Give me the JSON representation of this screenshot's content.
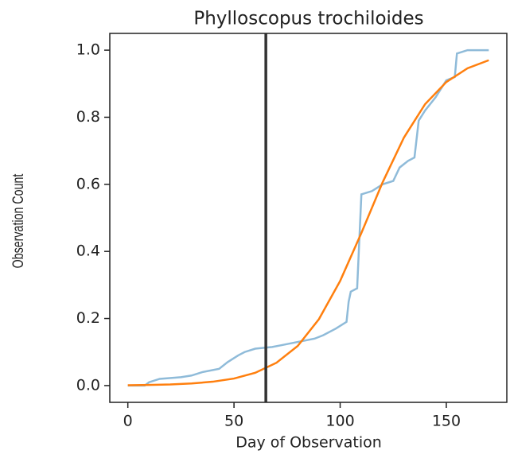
{
  "chart_data": {
    "type": "line",
    "title": "Phylloscopus trochiloides",
    "x_label": "Day of Observation",
    "y_label": "Observation Count",
    "xlim": [
      -8.5,
      178.5
    ],
    "ylim": [
      -0.05,
      1.05
    ],
    "xticks": [
      0,
      50,
      100,
      150
    ],
    "yticks": [
      {
        "value": 0,
        "label": "0.0"
      },
      0.2,
      0.4,
      0.6,
      0.8,
      {
        "value": 1,
        "label": "1.0"
      }
    ],
    "vline": 65,
    "vline_color": "#333333",
    "series": [
      {
        "color": "#8fbbd9",
        "x": [
          0,
          8,
          10,
          15,
          25,
          30,
          35,
          43,
          47,
          52,
          55,
          60,
          68,
          72,
          80,
          88,
          92,
          98,
          103,
          104,
          105,
          108,
          110,
          115,
          120,
          125,
          128,
          132,
          135,
          137,
          140,
          145,
          150,
          154,
          155,
          160,
          165,
          170
        ],
        "values": [
          0,
          0,
          0.01,
          0.02,
          0.025,
          0.03,
          0.04,
          0.05,
          0.07,
          0.09,
          0.1,
          0.11,
          0.115,
          0.12,
          0.13,
          0.14,
          0.15,
          0.17,
          0.19,
          0.25,
          0.28,
          0.29,
          0.57,
          0.58,
          0.6,
          0.61,
          0.65,
          0.67,
          0.68,
          0.79,
          0.82,
          0.86,
          0.91,
          0.92,
          0.99,
          1.0,
          1.0,
          1.0
        ]
      },
      {
        "color": "#ff7f0e",
        "x": [
          0,
          10,
          20,
          30,
          40,
          50,
          60,
          70,
          80,
          90,
          100,
          110,
          120,
          130,
          140,
          150,
          160,
          170
        ],
        "values": [
          0.001,
          0.0019,
          0.0034,
          0.0063,
          0.0115,
          0.021,
          0.038,
          0.068,
          0.118,
          0.198,
          0.312,
          0.455,
          0.606,
          0.739,
          0.839,
          0.905,
          0.946,
          0.97
        ]
      }
    ]
  }
}
